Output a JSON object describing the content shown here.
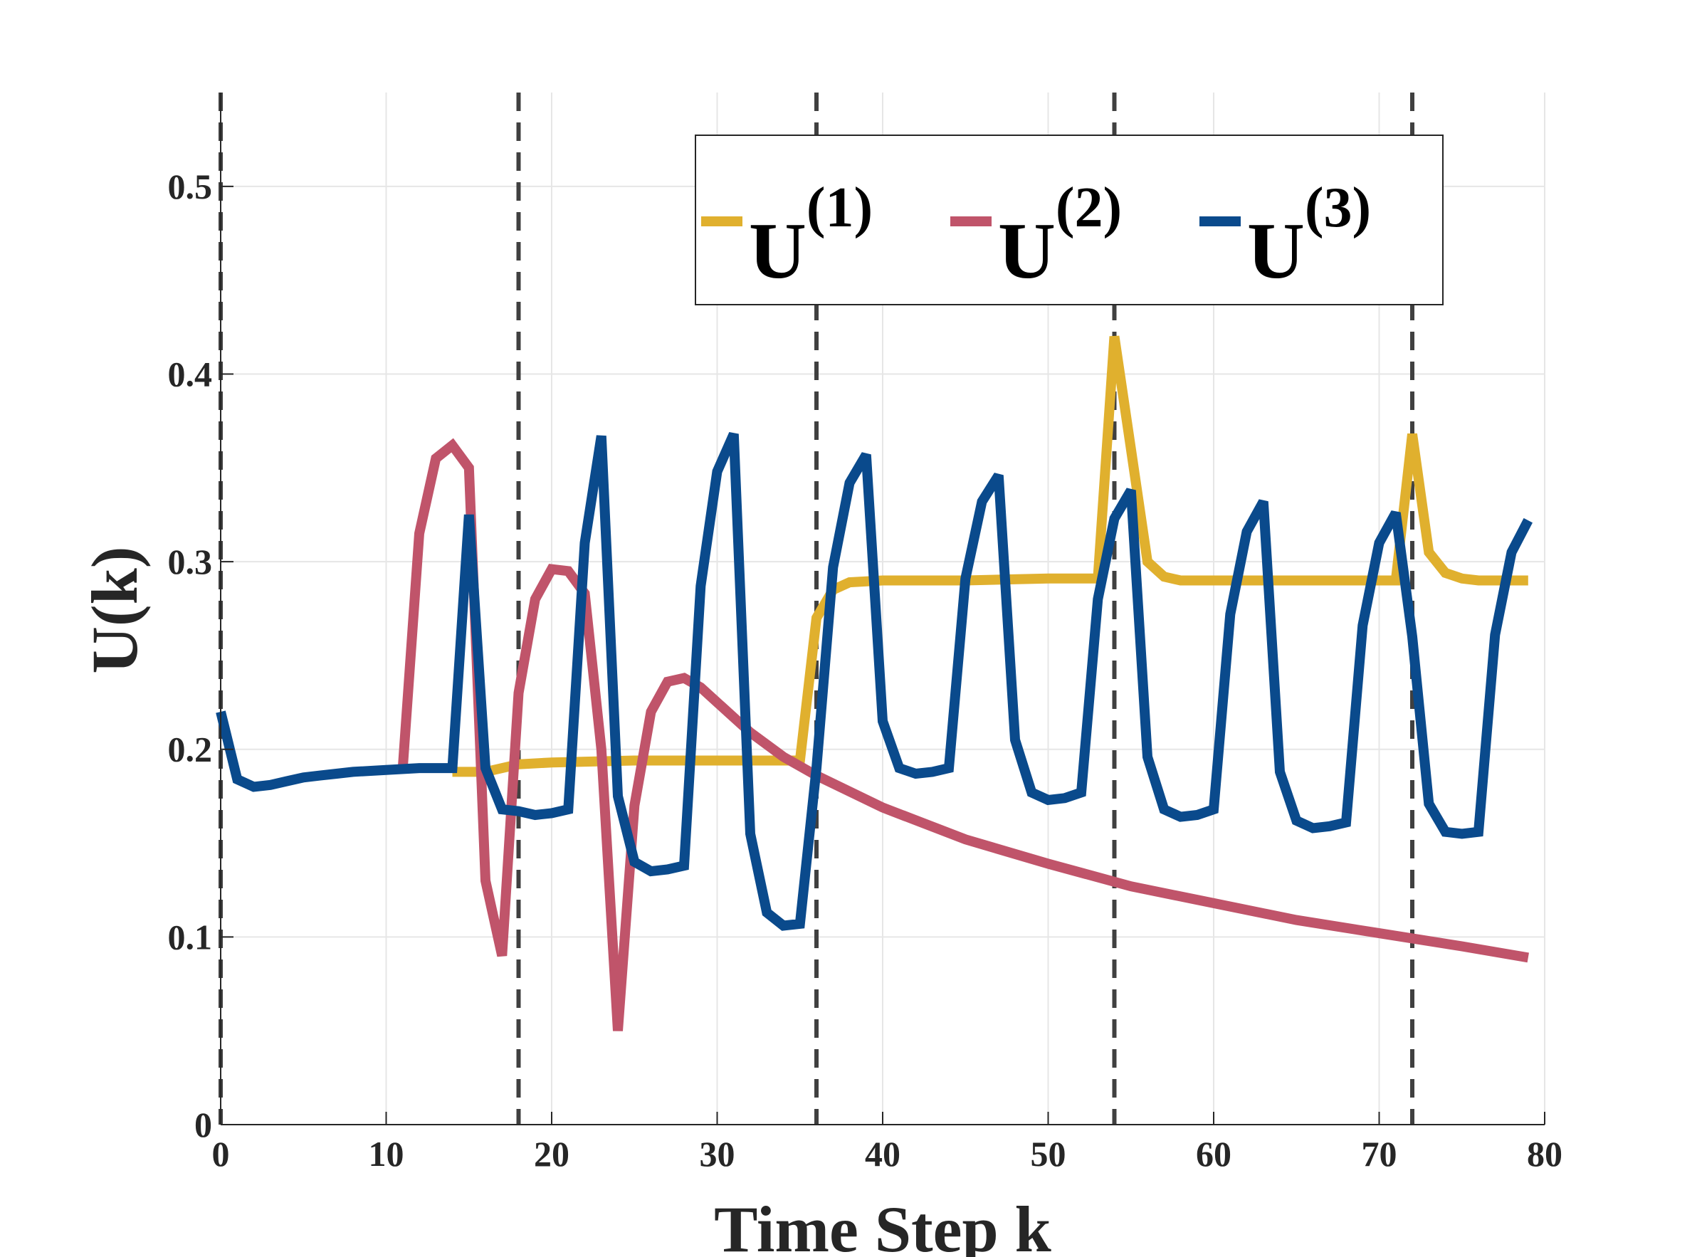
{
  "chart_data": {
    "type": "line",
    "xlabel": "Time Step k",
    "ylabel": "U(k)",
    "xlim": [
      0,
      80
    ],
    "ylim": [
      0,
      0.55
    ],
    "xticks": [
      0,
      10,
      20,
      30,
      40,
      50,
      60,
      70,
      80
    ],
    "xtick_labels": [
      "0",
      "10",
      "20",
      "30",
      "40",
      "50",
      "60",
      "70",
      "80"
    ],
    "yticks": [
      0,
      0.1,
      0.2,
      0.3,
      0.4,
      0.5
    ],
    "ytick_labels": [
      "0",
      "0.1",
      "0.2",
      "0.3",
      "0.4",
      "0.5"
    ],
    "grid": true,
    "legend_position": "top-right",
    "vlines": [
      0,
      18,
      36,
      54,
      72
    ],
    "series": [
      {
        "name": "U(1)",
        "legend_base": "U",
        "legend_sup": "(1)",
        "color": "#E0B02E",
        "x": [
          14,
          16,
          18,
          20,
          25,
          30,
          35,
          36,
          37,
          38,
          40,
          45,
          50,
          53,
          54,
          55,
          56,
          57,
          58,
          60,
          65,
          70,
          71,
          72,
          73,
          74,
          75,
          76,
          79
        ],
        "y": [
          0.188,
          0.188,
          0.192,
          0.193,
          0.194,
          0.194,
          0.194,
          0.27,
          0.285,
          0.289,
          0.29,
          0.29,
          0.291,
          0.291,
          0.42,
          0.36,
          0.3,
          0.292,
          0.29,
          0.29,
          0.29,
          0.29,
          0.29,
          0.368,
          0.305,
          0.294,
          0.291,
          0.29,
          0.29
        ]
      },
      {
        "name": "U(2)",
        "legend_base": "U",
        "legend_sup": "(2)",
        "color": "#C0546A",
        "x": [
          11,
          12,
          13,
          14,
          15,
          16,
          17,
          18,
          19,
          20,
          21,
          22,
          23,
          24,
          25,
          26,
          27,
          28,
          29,
          30,
          32,
          34,
          36,
          40,
          45,
          50,
          55,
          60,
          65,
          70,
          75,
          79
        ],
        "y": [
          0.19,
          0.315,
          0.355,
          0.362,
          0.35,
          0.13,
          0.09,
          0.23,
          0.28,
          0.296,
          0.295,
          0.283,
          0.2,
          0.05,
          0.17,
          0.22,
          0.236,
          0.238,
          0.233,
          0.225,
          0.209,
          0.196,
          0.186,
          0.169,
          0.152,
          0.139,
          0.127,
          0.118,
          0.109,
          0.102,
          0.095,
          0.089
        ]
      },
      {
        "name": "U(3)",
        "legend_base": "U",
        "legend_sup": "(3)",
        "color": "#0A4A8C",
        "x": [
          0,
          1,
          2,
          3,
          4,
          5,
          6,
          7,
          8,
          10,
          12,
          14,
          15,
          16,
          17,
          18,
          19,
          20,
          21,
          22,
          23,
          24,
          25,
          26,
          27,
          28,
          29,
          30,
          31,
          32,
          33,
          34,
          35,
          36,
          37,
          38,
          39,
          40,
          41,
          42,
          43,
          44,
          45,
          46,
          47,
          48,
          49,
          50,
          51,
          52,
          53,
          54,
          55,
          56,
          57,
          58,
          59,
          60,
          61,
          62,
          63,
          64,
          65,
          66,
          67,
          68,
          69,
          70,
          71,
          72,
          73,
          74,
          75,
          76,
          77,
          78,
          79
        ],
        "y": [
          0.22,
          0.184,
          0.18,
          0.181,
          0.183,
          0.185,
          0.186,
          0.187,
          0.188,
          0.189,
          0.19,
          0.19,
          0.325,
          0.19,
          0.168,
          0.167,
          0.165,
          0.166,
          0.168,
          0.31,
          0.367,
          0.175,
          0.14,
          0.135,
          0.136,
          0.138,
          0.287,
          0.348,
          0.368,
          0.155,
          0.113,
          0.106,
          0.107,
          0.19,
          0.297,
          0.342,
          0.357,
          0.215,
          0.19,
          0.187,
          0.188,
          0.19,
          0.291,
          0.332,
          0.346,
          0.205,
          0.177,
          0.173,
          0.174,
          0.177,
          0.28,
          0.323,
          0.338,
          0.196,
          0.168,
          0.164,
          0.165,
          0.168,
          0.272,
          0.316,
          0.332,
          0.188,
          0.162,
          0.158,
          0.159,
          0.161,
          0.266,
          0.31,
          0.326,
          0.26,
          0.171,
          0.156,
          0.155,
          0.156,
          0.261,
          0.305,
          0.322
        ]
      }
    ]
  }
}
